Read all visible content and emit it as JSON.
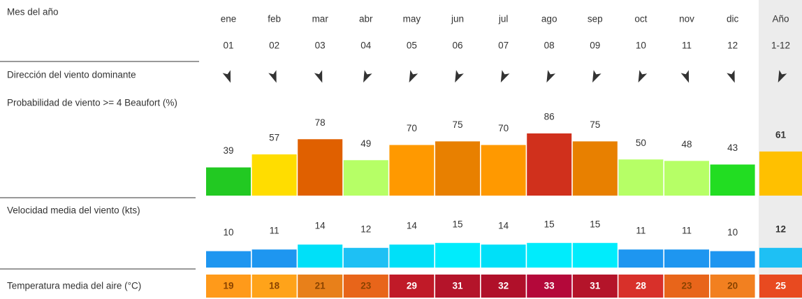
{
  "header": {
    "label": "Mes del año"
  },
  "months": [
    {
      "name": "ene",
      "number": "01"
    },
    {
      "name": "feb",
      "number": "02"
    },
    {
      "name": "mar",
      "number": "03"
    },
    {
      "name": "abr",
      "number": "04"
    },
    {
      "name": "may",
      "number": "05"
    },
    {
      "name": "jun",
      "number": "06"
    },
    {
      "name": "jul",
      "number": "07"
    },
    {
      "name": "ago",
      "number": "08"
    },
    {
      "name": "sep",
      "number": "09"
    },
    {
      "name": "oct",
      "number": "10"
    },
    {
      "name": "nov",
      "number": "11"
    },
    {
      "name": "dic",
      "number": "12"
    },
    {
      "name": "Año",
      "number": "1-12"
    }
  ],
  "rows": {
    "direction": {
      "label": "Dirección del viento dominante"
    },
    "probability": {
      "label": "Probabilidad de viento >= 4 Beaufort  (%)",
      "values": [
        39,
        57,
        78,
        49,
        70,
        75,
        70,
        86,
        75,
        50,
        48,
        43,
        61
      ],
      "colors": [
        "#22c922",
        "#ffdd00",
        "#e06000",
        "#b6ff66",
        "#ff9900",
        "#e88000",
        "#ff9900",
        "#d0301c",
        "#e88000",
        "#b6ff66",
        "#b6ff66",
        "#22dd22",
        "#ffc000"
      ]
    },
    "speed": {
      "label": "Velocidad media del viento  (kts)",
      "values": [
        10,
        11,
        14,
        12,
        14,
        15,
        14,
        15,
        15,
        11,
        11,
        10,
        12
      ],
      "colors": [
        "#1e96f0",
        "#1e96f0",
        "#00e0f8",
        "#1ec0f4",
        "#00e0f8",
        "#00ecfc",
        "#00e0f8",
        "#00ecfc",
        "#00ecfc",
        "#1e96f0",
        "#1e96f0",
        "#1e96f0",
        "#1ec0f4"
      ]
    },
    "temperature": {
      "label": "Temperatura media del aire  (°C)",
      "values": [
        19,
        18,
        21,
        23,
        29,
        31,
        32,
        33,
        31,
        28,
        23,
        20,
        25
      ],
      "colors": [
        "#ff9a1a",
        "#ffa31a",
        "#e8801a",
        "#e8651a",
        "#c01a28",
        "#b4142a",
        "#b0102a",
        "#b4083a",
        "#b4142a",
        "#d8302a",
        "#e8651a",
        "#f28020",
        "#e84a20"
      ],
      "text_colors": [
        "#8a4300",
        "#8a4300",
        "#8a4300",
        "#8a4300",
        "#ffffff",
        "#ffffff",
        "#ffffff",
        "#ffffff",
        "#ffffff",
        "#ffffff",
        "#8a4300",
        "#8a4300",
        "#ffffff"
      ]
    }
  }
}
